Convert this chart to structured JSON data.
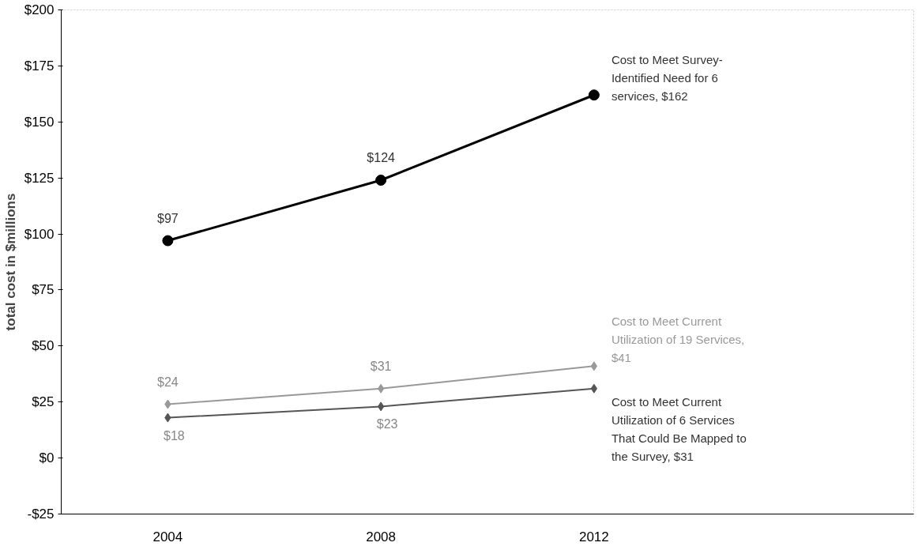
{
  "chart_data": {
    "type": "line",
    "ylabel": "total cost in $millions",
    "x": [
      2004,
      2008,
      2012
    ],
    "xlim": [
      2002,
      2018
    ],
    "xticks": [
      2004,
      2008,
      2012
    ],
    "ylim": [
      -25,
      200
    ],
    "yticks": [
      {
        "value": -25,
        "label": "-$25"
      },
      {
        "value": 0,
        "label": "$0"
      },
      {
        "value": 25,
        "label": "$25"
      },
      {
        "value": 50,
        "label": "$50"
      },
      {
        "value": 75,
        "label": "$75"
      },
      {
        "value": 100,
        "label": "$100"
      },
      {
        "value": 125,
        "label": "$125"
      },
      {
        "value": 150,
        "label": "$150"
      },
      {
        "value": 175,
        "label": "$175"
      },
      {
        "value": 200,
        "label": "$200"
      }
    ],
    "grid": false,
    "line_style": "solid",
    "series": [
      {
        "color": "#000000",
        "marker": "circle",
        "values": [
          97,
          124,
          162
        ],
        "value_labels": [
          "$97",
          "$124",
          "Cost to Meet Survey-Identified Need for 6 services, $162"
        ]
      },
      {
        "color": "#999999",
        "marker": "diamond",
        "values": [
          24,
          31,
          41
        ],
        "value_labels": [
          "$24",
          "$31",
          "Cost to Meet Current Utilization of 19 Services, $41"
        ]
      },
      {
        "color": "#555555",
        "marker": "diamond",
        "values": [
          18,
          23,
          31
        ],
        "value_labels": [
          "$18",
          "$23",
          "Cost to Meet Current Utilization of 6 Services That Could Be Mapped to the Survey, $31"
        ]
      }
    ]
  }
}
